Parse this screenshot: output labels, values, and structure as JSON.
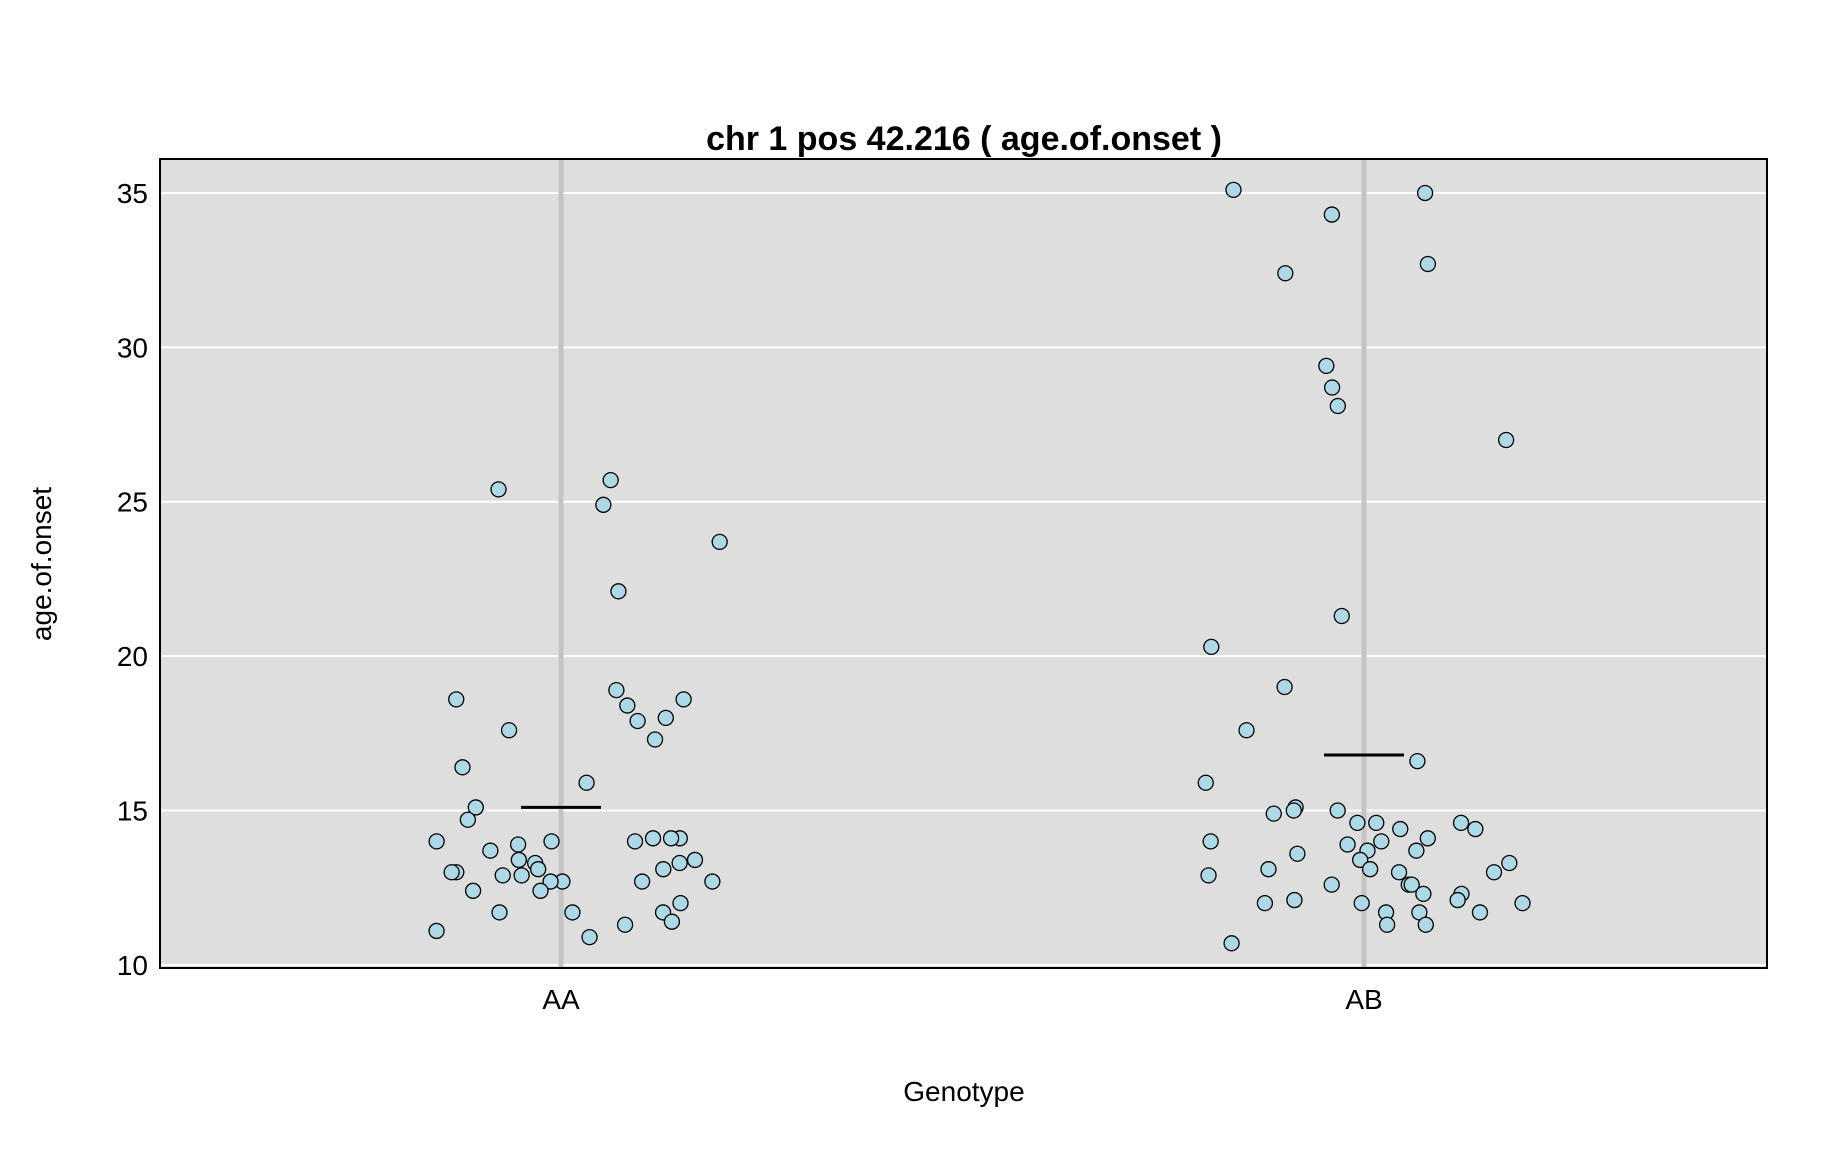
{
  "chart_data": {
    "type": "scatter",
    "title": "chr 1 pos 42.216 ( age.of.onset )",
    "xlabel": "Genotype",
    "ylabel": "age.of.onset",
    "categories": [
      "AA",
      "AB"
    ],
    "ylim": [
      9.9,
      36.1
    ],
    "yticks": [
      10,
      15,
      20,
      25,
      30,
      35
    ],
    "grid": true,
    "background_color": "#dedede",
    "point_fill": "#add8e6",
    "point_stroke": "#000000",
    "category_line_color": "#c4c4c4",
    "series": [
      {
        "category": "AA",
        "mean": 15.1,
        "values": [
          25.7,
          25.4,
          24.9,
          23.7,
          22.1,
          18.9,
          18.6,
          18.6,
          18.4,
          18.0,
          17.9,
          17.6,
          17.3,
          16.4,
          15.9,
          15.1,
          14.7,
          14.1,
          14.1,
          14.1,
          14.0,
          14.0,
          14.0,
          13.9,
          13.7,
          13.4,
          13.4,
          13.3,
          13.3,
          13.1,
          13.1,
          13.0,
          13.0,
          12.9,
          12.9,
          12.7,
          12.7,
          12.7,
          12.7,
          12.4,
          12.4,
          12.0,
          11.7,
          11.7,
          11.7,
          11.4,
          11.3,
          11.1,
          10.9
        ]
      },
      {
        "category": "AB",
        "mean": 16.8,
        "values": [
          35.1,
          35.0,
          34.3,
          32.7,
          32.4,
          29.4,
          28.7,
          28.1,
          27.0,
          21.3,
          20.3,
          19.0,
          17.6,
          16.6,
          15.9,
          15.1,
          15.0,
          15.0,
          14.9,
          14.6,
          14.6,
          14.6,
          14.4,
          14.4,
          14.1,
          14.0,
          14.0,
          13.9,
          13.7,
          13.7,
          13.6,
          13.4,
          13.3,
          13.1,
          13.1,
          13.0,
          13.0,
          12.9,
          12.6,
          12.6,
          12.6,
          12.3,
          12.3,
          12.1,
          12.1,
          12.0,
          12.0,
          12.0,
          11.7,
          11.7,
          11.7,
          11.3,
          11.3,
          10.7
        ]
      }
    ]
  }
}
